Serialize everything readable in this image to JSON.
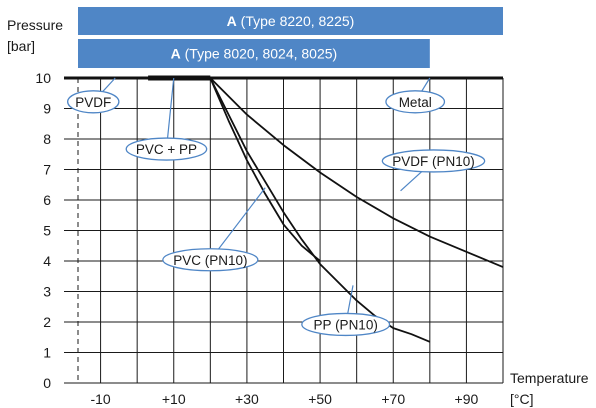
{
  "chart_data": {
    "type": "line",
    "title": "",
    "ylabel_line1": "Pressure",
    "ylabel_line2": "[bar]",
    "xlabel_line1": "Temperature",
    "xlabel_line2": "[°C]",
    "xlim": [
      -20,
      100
    ],
    "ylim": [
      0,
      10
    ],
    "grid": true,
    "x_ticks": [
      {
        "value": -10,
        "label": "-10"
      },
      {
        "value": 10,
        "label": "+10"
      },
      {
        "value": 30,
        "label": "+30"
      },
      {
        "value": 50,
        "label": "+50"
      },
      {
        "value": 70,
        "label": "+70"
      },
      {
        "value": 90,
        "label": "+90"
      }
    ],
    "y_ticks": [
      {
        "value": 0,
        "label": "0"
      },
      {
        "value": 1,
        "label": "1"
      },
      {
        "value": 2,
        "label": "2"
      },
      {
        "value": 3,
        "label": "3"
      },
      {
        "value": 4,
        "label": "4"
      },
      {
        "value": 5,
        "label": "5"
      },
      {
        "value": 6,
        "label": "6"
      },
      {
        "value": 7,
        "label": "7"
      },
      {
        "value": 8,
        "label": "8"
      },
      {
        "value": 9,
        "label": "9"
      },
      {
        "value": 10,
        "label": "10"
      }
    ],
    "bands": [
      {
        "name": "band-type-8220",
        "bold": "A",
        "text": " (Type 8220, 8225)",
        "x_range": [
          -20,
          100
        ],
        "color": "#4f86c6"
      },
      {
        "name": "band-type-8020",
        "bold": "A",
        "text": " (Type 8020, 8024, 8025)",
        "x_range": [
          -20,
          80
        ],
        "color": "#4f86c6"
      }
    ],
    "series": [
      {
        "id": "metal",
        "x": [
          -20,
          100
        ],
        "y": [
          10,
          10
        ],
        "width": 3
      },
      {
        "id": "pvc-pp",
        "x": [
          3,
          20
        ],
        "y": [
          10,
          10
        ],
        "width": 5
      },
      {
        "id": "pvdf-pn10",
        "x": [
          20,
          30,
          40,
          50,
          60,
          70,
          80,
          90,
          100
        ],
        "y": [
          10,
          8.8,
          7.8,
          6.9,
          6.1,
          5.4,
          4.8,
          4.3,
          3.8
        ],
        "width": 1.8
      },
      {
        "id": "pvc-pn10",
        "x": [
          20,
          25,
          30,
          35,
          40,
          45,
          50
        ],
        "y": [
          10,
          8.6,
          7.3,
          6.2,
          5.2,
          4.5,
          4.0
        ],
        "width": 1.8
      },
      {
        "id": "pp-pn10",
        "x": [
          20,
          25,
          30,
          35,
          40,
          45,
          50,
          55,
          60,
          65,
          70,
          75,
          80
        ],
        "y": [
          10,
          8.8,
          7.6,
          6.6,
          5.6,
          4.7,
          3.9,
          3.3,
          2.7,
          2.2,
          1.8,
          1.6,
          1.35
        ],
        "width": 1.8
      }
    ],
    "annotations": [
      {
        "id": "pvdf",
        "text": "PVDF",
        "at": [
          -12,
          9.22
        ],
        "point": [
          -6,
          10
        ]
      },
      {
        "id": "metal",
        "text": "Metal",
        "at": [
          76,
          9.22
        ],
        "point": [
          80,
          10
        ]
      },
      {
        "id": "pvc-pp",
        "text": "PVC + PP",
        "at": [
          8,
          7.67
        ],
        "point": [
          10,
          10
        ]
      },
      {
        "id": "pvdf-pn10",
        "text": "PVDF (PN10)",
        "at": [
          81,
          7.28
        ],
        "point": [
          72,
          6.3
        ]
      },
      {
        "id": "pvc-pn10",
        "text": "PVC (PN10)",
        "at": [
          20,
          4.04
        ],
        "point": [
          35,
          6.4
        ]
      },
      {
        "id": "pp-pn10",
        "text": "PP (PN10)",
        "at": [
          57,
          1.92
        ],
        "point": [
          59,
          3.2
        ]
      }
    ]
  }
}
